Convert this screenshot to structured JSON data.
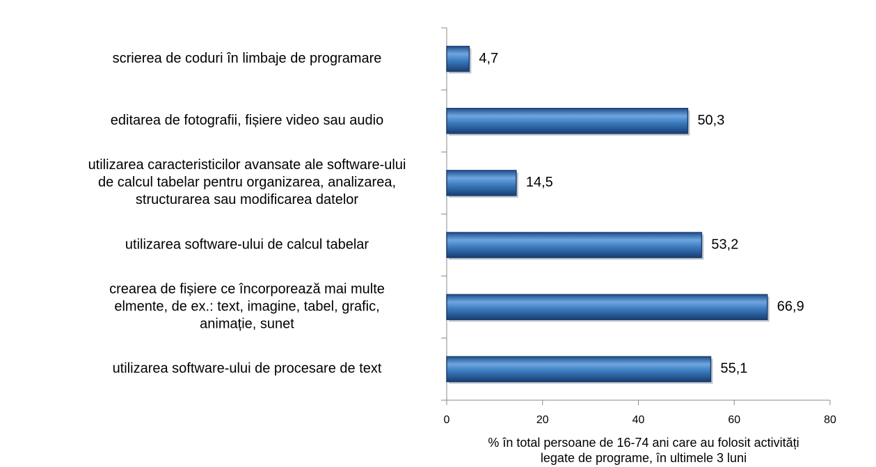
{
  "chart_data": {
    "type": "hbar",
    "categories": [
      "scrierea de coduri în limbaje de programare",
      "editarea de fotografii, fișiere video sau audio",
      "utilizarea caracteristicilor avansate ale software-ului\nde calcul tabelar pentru organizarea, analizarea,\nstructurarea sau modificarea datelor",
      "utilizarea software-ului de calcul tabelar",
      "crearea de fișiere ce încorporează mai multe\nelmente,  de ex.: text, imagine, tabel, grafic,\nanimație, sunet",
      "utilizarea software-ului de procesare de text"
    ],
    "values": [
      4.7,
      50.3,
      14.5,
      53.2,
      66.9,
      55.1
    ],
    "value_labels": [
      "4,7",
      "50,3",
      "14,5",
      "53,2",
      "66,9",
      "55,1"
    ],
    "color": "#3f7fc4",
    "xlim": [
      0,
      80
    ],
    "xticks": [
      0,
      20,
      40,
      60,
      80
    ],
    "x_label": "% în total persoane de 16-74 ani care au folosit activități\nlegate de programe, în ultimele 3 luni"
  }
}
